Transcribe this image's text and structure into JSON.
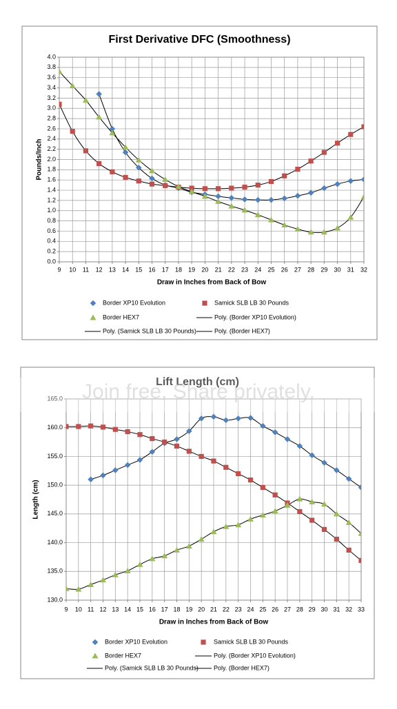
{
  "watermark": "Join free. Share privately.",
  "chart_data": [
    {
      "type": "scatter",
      "title": "First Derivative DFC (Smoothness)",
      "x_label": "Draw in Inches from Back of Bow",
      "y_label": "Pounds/Inch",
      "x": [
        9,
        10,
        11,
        12,
        13,
        14,
        15,
        16,
        17,
        18,
        19,
        20,
        21,
        22,
        23,
        24,
        25,
        26,
        27,
        28,
        29,
        30,
        31,
        32
      ],
      "xlim": [
        9,
        32
      ],
      "xticks": [
        9,
        10,
        11,
        12,
        13,
        14,
        15,
        16,
        17,
        18,
        19,
        20,
        21,
        22,
        23,
        24,
        25,
        26,
        27,
        28,
        29,
        30,
        31,
        32
      ],
      "ylim": [
        0,
        4
      ],
      "yticks": [
        {
          "value": 0,
          "label": "0.0"
        },
        0.2,
        0.4,
        0.6,
        0.8,
        {
          "value": 1,
          "label": "1.0"
        },
        1.2,
        1.4,
        1.6,
        1.8,
        {
          "value": 2,
          "label": "2.0"
        },
        2.2,
        2.4,
        2.6,
        2.8,
        {
          "value": 3,
          "label": "3.0"
        },
        3.2,
        3.4,
        3.6,
        3.8,
        {
          "value": 4,
          "label": "4.0"
        }
      ],
      "grid": true,
      "trendline_color": "#000000",
      "series": [
        {
          "name": "Border XP10 Evolution",
          "color": "#4f81bd",
          "marker": "diamond",
          "trendline_name": "Poly. (Border XP10 Evolution)",
          "values": [
            null,
            null,
            null,
            3.28,
            2.6,
            2.14,
            1.84,
            1.63,
            1.5,
            1.44,
            1.36,
            1.32,
            1.28,
            1.25,
            1.22,
            1.21,
            1.21,
            1.24,
            1.29,
            1.35,
            1.44,
            1.52,
            1.58,
            1.61
          ]
        },
        {
          "name": "Samick SLB LB 30 Pounds",
          "color": "#c0504d",
          "marker": "square",
          "trendline_name": "Poly. (Samick SLB LB 30 Pounds)",
          "values": [
            3.08,
            2.55,
            2.17,
            1.92,
            1.76,
            1.65,
            1.58,
            1.52,
            1.49,
            1.46,
            1.44,
            1.43,
            1.43,
            1.44,
            1.46,
            1.5,
            1.57,
            1.68,
            1.81,
            1.97,
            2.14,
            2.32,
            2.49,
            2.64
          ]
        },
        {
          "name": "Border HEX7",
          "color": "#9bbb59",
          "marker": "triangle",
          "trendline_name": "Poly. (Border HEX7)",
          "values": [
            3.72,
            3.44,
            3.16,
            2.83,
            2.52,
            2.24,
            1.99,
            1.78,
            1.61,
            1.47,
            1.37,
            1.28,
            1.18,
            1.09,
            1.01,
            0.92,
            0.82,
            0.72,
            0.64,
            0.58,
            0.58,
            0.66,
            0.87,
            1.27
          ]
        }
      ]
    },
    {
      "type": "scatter",
      "title": "Lift Length (cm)",
      "x_label": "Draw in Inches from Back of Bow",
      "y_label": "Length (cm)",
      "x": [
        9,
        10,
        11,
        12,
        13,
        14,
        15,
        16,
        17,
        18,
        19,
        20,
        21,
        22,
        23,
        24,
        25,
        26,
        27,
        28,
        29,
        30,
        31,
        32,
        33
      ],
      "xlim": [
        9,
        33
      ],
      "xticks": [
        9,
        10,
        11,
        12,
        13,
        14,
        15,
        16,
        17,
        18,
        19,
        20,
        21,
        22,
        23,
        24,
        25,
        26,
        27,
        28,
        29,
        30,
        31,
        32,
        33
      ],
      "ylim": [
        130,
        165
      ],
      "yticks": [
        {
          "value": 130,
          "label": "130.0"
        },
        {
          "value": 135,
          "label": "135.0"
        },
        {
          "value": 140,
          "label": "140.0"
        },
        {
          "value": 145,
          "label": "145.0"
        },
        {
          "value": 150,
          "label": "150.0"
        },
        {
          "value": 155,
          "label": "155.0"
        },
        {
          "value": 160,
          "label": "160.0"
        },
        {
          "value": 165,
          "label": "165.0"
        }
      ],
      "grid": true,
      "trendline_color": "#000000",
      "series": [
        {
          "name": "Border XP10 Evolution",
          "color": "#4f81bd",
          "marker": "diamond",
          "trendline_name": "Poly. (Border XP10 Evolution)",
          "values": [
            null,
            null,
            151.0,
            151.7,
            152.6,
            153.5,
            154.4,
            155.8,
            157.3,
            158.0,
            159.4,
            161.6,
            161.9,
            161.3,
            161.6,
            161.7,
            160.3,
            159.2,
            158.0,
            156.8,
            155.2,
            153.9,
            152.6,
            151.1,
            149.6
          ]
        },
        {
          "name": "Samick SLB LB 30 Pounds",
          "color": "#c0504d",
          "marker": "square",
          "trendline_name": "Poly. (Samick SLB LB 30 Pounds)",
          "values": [
            160.2,
            160.2,
            160.3,
            160.1,
            159.7,
            159.3,
            158.8,
            158.1,
            157.5,
            156.8,
            155.9,
            155.0,
            154.2,
            153.1,
            152.0,
            150.9,
            149.6,
            148.3,
            146.9,
            145.4,
            143.9,
            142.3,
            140.6,
            138.7,
            136.9
          ]
        },
        {
          "name": "Border HEX7",
          "color": "#9bbb59",
          "marker": "triangle",
          "trendline_name": "Poly. (Border HEX7)",
          "values": [
            132.0,
            131.9,
            132.7,
            133.5,
            134.4,
            135.1,
            136.2,
            137.2,
            137.7,
            138.7,
            139.4,
            140.6,
            141.9,
            142.8,
            143.1,
            144.1,
            144.8,
            145.5,
            146.5,
            147.6,
            147.1,
            146.7,
            145.0,
            143.5,
            141.6
          ]
        }
      ]
    }
  ]
}
